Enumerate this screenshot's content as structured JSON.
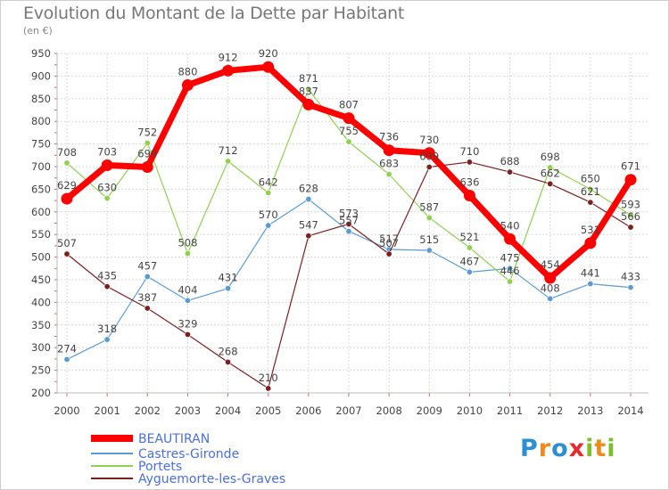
{
  "title": "Evolution du Montant de la Dette par Habitant",
  "subtitle": "(en €)",
  "logo": {
    "text": "Proxiti",
    "letters": [
      {
        "ch": "P",
        "color": "#2b8fd6"
      },
      {
        "ch": "r",
        "color": "#f08a1c"
      },
      {
        "ch": "o",
        "color": "#2b8fd6"
      },
      {
        "ch": "x",
        "color": "#e9282c"
      },
      {
        "ch": "i",
        "color": "#7cbf2a"
      },
      {
        "ch": "t",
        "color": "#f08a1c"
      },
      {
        "ch": "i",
        "color": "#7cbf2a"
      }
    ]
  },
  "chart_data": {
    "type": "line",
    "title": "Evolution du Montant de la Dette par Habitant",
    "subtitle": "(en €)",
    "x": [
      "2000",
      "2001",
      "2002",
      "2003",
      "2004",
      "2005",
      "2006",
      "2007",
      "2008",
      "2009",
      "2010",
      "2011",
      "2012",
      "2013",
      "2014"
    ],
    "ylim": [
      200,
      950
    ],
    "yticks": [
      200,
      250,
      300,
      350,
      400,
      450,
      500,
      550,
      600,
      650,
      700,
      750,
      800,
      850,
      900,
      950
    ],
    "grid": true,
    "legend_position": "bottom-left",
    "series": [
      {
        "name": "BEAUTIRAN",
        "color": "#ff0000",
        "line_width": 7,
        "marker_radius": 6.5,
        "values": [
          629,
          703,
          699,
          880,
          912,
          920,
          837,
          807,
          736,
          730,
          636,
          540,
          454,
          531,
          671
        ],
        "labels": [
          "629",
          "703",
          "699",
          "880",
          "912",
          "920",
          "837",
          "807",
          "736",
          "730",
          "636",
          "540",
          "454",
          "531",
          "671"
        ]
      },
      {
        "name": "Castres-Gironde",
        "color": "#5b9bd5",
        "line_width": 1.2,
        "marker_radius": 3.2,
        "values": [
          274,
          318,
          457,
          404,
          431,
          570,
          628,
          557,
          517,
          515,
          467,
          475,
          408,
          441,
          433
        ],
        "labels": [
          "274",
          "318",
          "457",
          "404",
          "431",
          "570",
          "628",
          "557",
          "517",
          "515",
          "467",
          "475",
          "408",
          "441",
          "433"
        ]
      },
      {
        "name": "Portets",
        "color": "#8fd14f",
        "line_width": 1.2,
        "marker_radius": 3.2,
        "values": [
          708,
          630,
          752,
          508,
          712,
          642,
          871,
          755,
          683,
          587,
          521,
          446,
          698,
          650,
          593
        ],
        "labels": [
          "708",
          "630",
          "752",
          "508",
          "712",
          "642",
          "871",
          "755",
          "683",
          "587",
          "521",
          "446",
          "698",
          "650",
          "593"
        ]
      },
      {
        "name": "Ayguemorte-les-Graves",
        "color": "#7b2020",
        "line_width": 1.2,
        "marker_radius": 3.2,
        "values": [
          507,
          435,
          387,
          329,
          268,
          210,
          547,
          573,
          507,
          699,
          710,
          688,
          662,
          621,
          566
        ],
        "labels": [
          "507",
          "435",
          "387",
          "329",
          "268",
          "210",
          "547",
          "573",
          "507",
          "699",
          "710",
          "688",
          "662",
          "621",
          "566"
        ]
      }
    ]
  }
}
